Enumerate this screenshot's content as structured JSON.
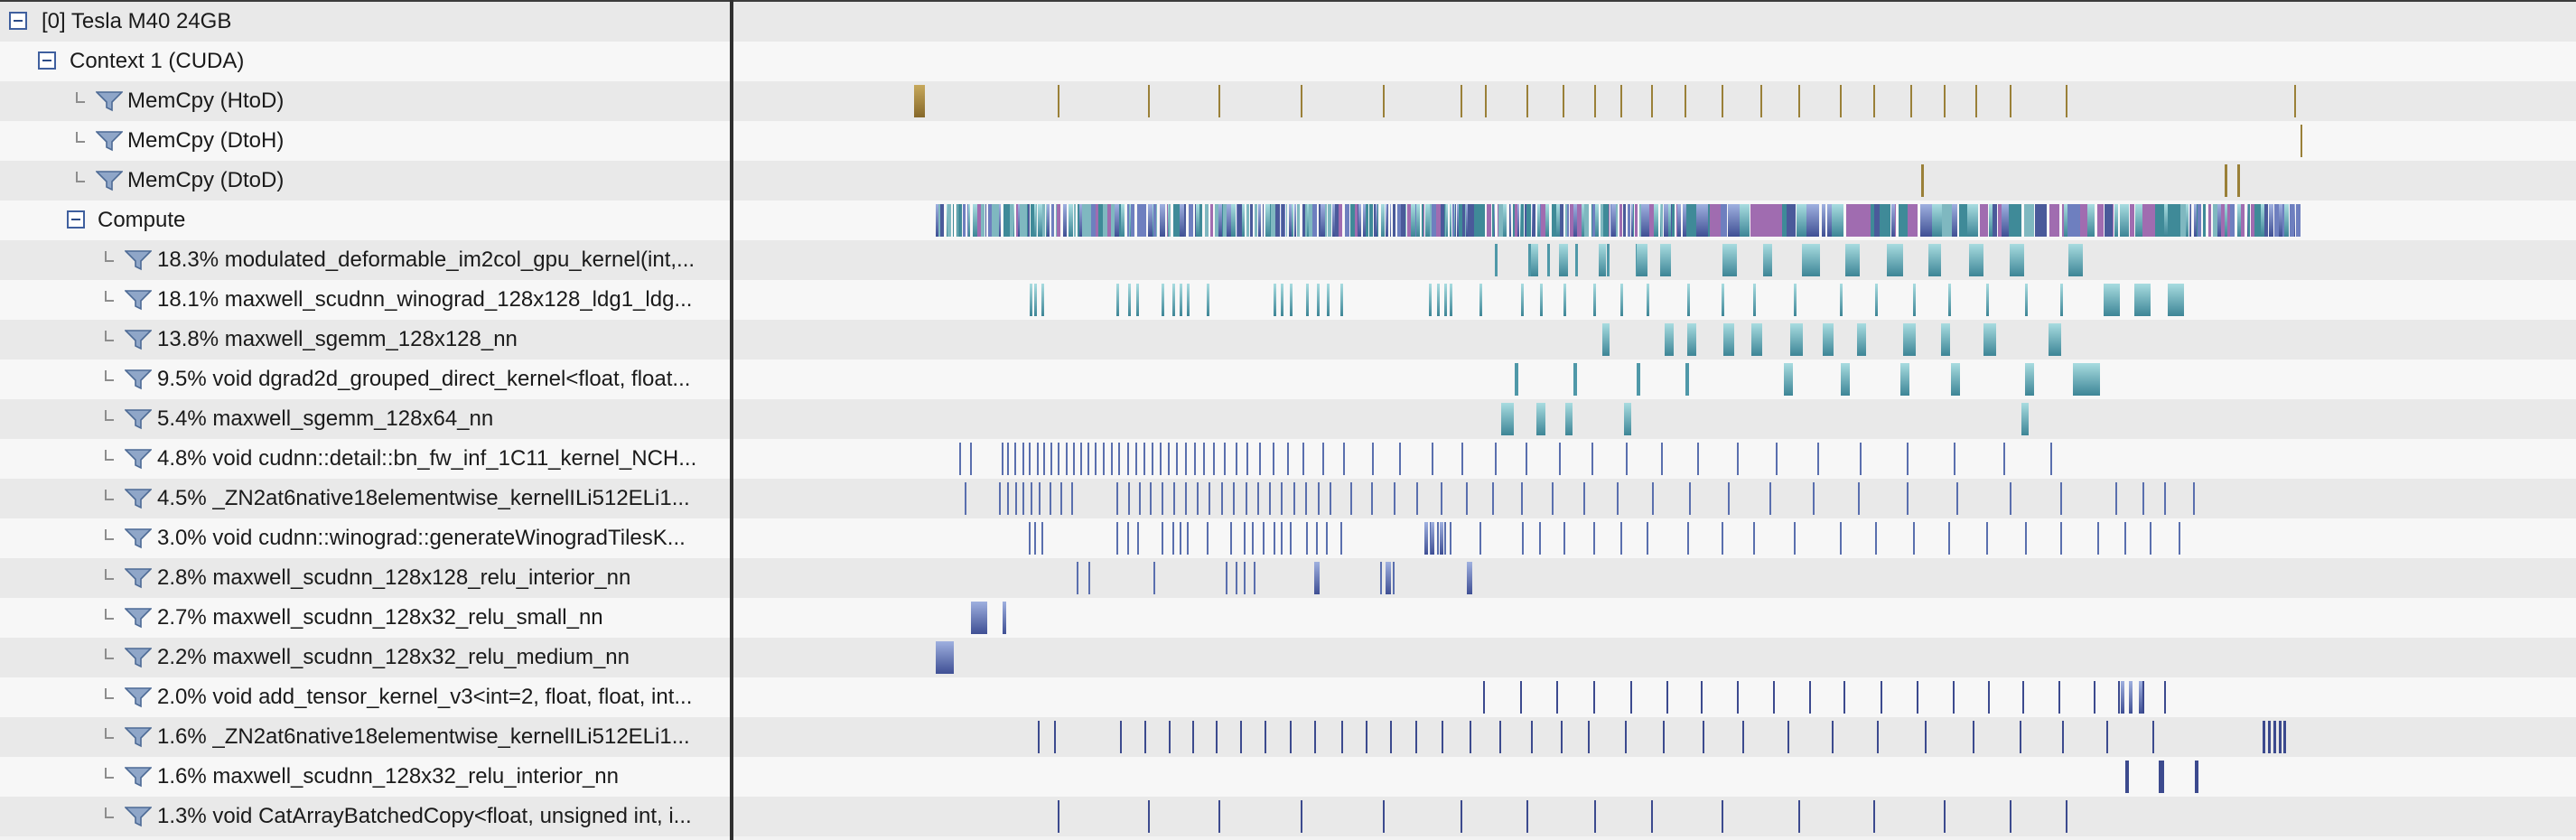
{
  "tree_rows": [
    {
      "label": "[0] Tesla M40 24GB",
      "kind": "group",
      "level": 0
    },
    {
      "label": "Context 1 (CUDA)",
      "kind": "group",
      "level": 1
    },
    {
      "label": "MemCpy (HtoD)",
      "kind": "filter",
      "level": 2
    },
    {
      "label": "MemCpy (DtoH)",
      "kind": "filter",
      "level": 2
    },
    {
      "label": "MemCpy (DtoD)",
      "kind": "filter",
      "level": 2
    },
    {
      "label": "Compute",
      "kind": "group",
      "level": 2
    },
    {
      "label": "18.3% modulated_deformable_im2col_gpu_kernel(int,...",
      "kind": "filter",
      "level": 3
    },
    {
      "label": "18.1% maxwell_scudnn_winograd_128x128_ldg1_ldg...",
      "kind": "filter",
      "level": 3
    },
    {
      "label": "13.8% maxwell_sgemm_128x128_nn",
      "kind": "filter",
      "level": 3
    },
    {
      "label": "9.5% void dgrad2d_grouped_direct_kernel<float, float...",
      "kind": "filter",
      "level": 3
    },
    {
      "label": "5.4% maxwell_sgemm_128x64_nn",
      "kind": "filter",
      "level": 3
    },
    {
      "label": "4.8% void cudnn::detail::bn_fw_inf_1C11_kernel_NCH...",
      "kind": "filter",
      "level": 3
    },
    {
      "label": "4.5% _ZN2at6native18elementwise_kernelILi512ELi1...",
      "kind": "filter",
      "level": 3
    },
    {
      "label": "3.0% void cudnn::winograd::generateWinogradTilesK...",
      "kind": "filter",
      "level": 3
    },
    {
      "label": "2.8% maxwell_scudnn_128x128_relu_interior_nn",
      "kind": "filter",
      "level": 3
    },
    {
      "label": "2.7% maxwell_scudnn_128x32_relu_small_nn",
      "kind": "filter",
      "level": 3
    },
    {
      "label": "2.2% maxwell_scudnn_128x32_relu_medium_nn",
      "kind": "filter",
      "level": 3
    },
    {
      "label": "2.0% void add_tensor_kernel_v3<int=2, float, float, int...",
      "kind": "filter",
      "level": 3
    },
    {
      "label": "1.6% _ZN2at6native18elementwise_kernelILi512ELi1...",
      "kind": "filter",
      "level": 3
    },
    {
      "label": "1.6% maxwell_scudnn_128x32_relu_interior_nn",
      "kind": "filter",
      "level": 3
    },
    {
      "label": "1.3% void CatArrayBatchedCopy<float, unsigned int, i...",
      "kind": "filter",
      "level": 3
    }
  ],
  "icons": {
    "expand": "collapse-minus-icon",
    "filter": "funnel-filter-icon",
    "connector": "tree-elbow-icon"
  },
  "colors": {
    "memcpy": "#9a8038",
    "teal": "#4f98a8",
    "blue": "#5a6fae",
    "dark_blue": "#3c4a8e",
    "purple": "#8a5aa0",
    "row_odd": "#e9e9e9",
    "row_even": "#f7f7f7",
    "divider": "#2f2f2f"
  }
}
